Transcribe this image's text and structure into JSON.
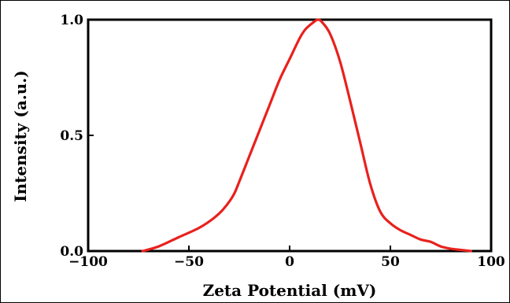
{
  "chart_data": {
    "type": "line",
    "title": "",
    "xlabel": "Zeta Potential (mV)",
    "ylabel": "Intensity (a.u.)",
    "xlim": [
      -100,
      100
    ],
    "ylim": [
      0,
      1.0
    ],
    "x_ticks": [
      -100,
      -50,
      0,
      50,
      100
    ],
    "x_tick_labels": [
      "−100",
      "−50",
      "0",
      "50",
      "100"
    ],
    "y_ticks": [
      0.0,
      0.5,
      1.0
    ],
    "y_tick_labels": [
      "0.0",
      "0.5",
      "1.0"
    ],
    "grid": false,
    "legend": "none",
    "series": [
      {
        "color": "#e8211d",
        "x": [
          -73,
          -65,
          -55,
          -45,
          -38,
          -33,
          -28,
          -25,
          -20,
          -15,
          -10,
          -5,
          0,
          5,
          8,
          12,
          14,
          16,
          20,
          25,
          30,
          35,
          40,
          45,
          50,
          55,
          60,
          65,
          70,
          75,
          80,
          85,
          90
        ],
        "y": [
          0.0,
          0.02,
          0.06,
          0.1,
          0.14,
          0.18,
          0.24,
          0.3,
          0.41,
          0.52,
          0.63,
          0.74,
          0.83,
          0.92,
          0.96,
          0.99,
          1.0,
          0.99,
          0.94,
          0.82,
          0.65,
          0.47,
          0.29,
          0.17,
          0.12,
          0.09,
          0.07,
          0.05,
          0.04,
          0.02,
          0.01,
          0.005,
          0.0
        ]
      }
    ]
  }
}
